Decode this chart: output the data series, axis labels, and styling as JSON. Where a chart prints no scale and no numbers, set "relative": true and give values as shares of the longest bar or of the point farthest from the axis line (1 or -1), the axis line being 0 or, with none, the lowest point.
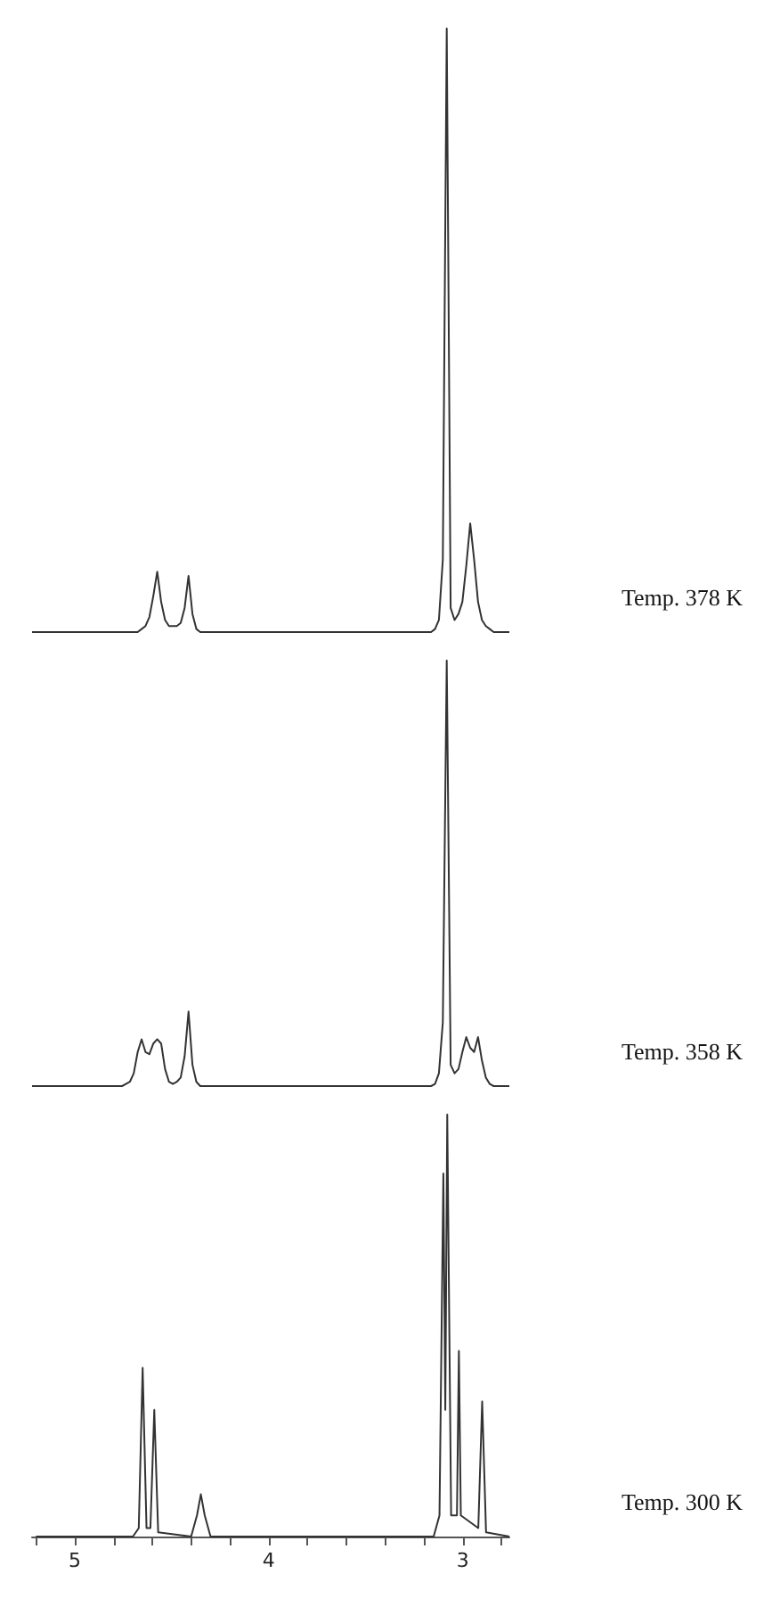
{
  "chart_data": [
    {
      "type": "line",
      "relative": true,
      "tick_labels": false,
      "annotations": [
        "Temp. 378 K"
      ],
      "categories": [
        null,
        null,
        null,
        null,
        null,
        null,
        null,
        null,
        null,
        null,
        null,
        null,
        null,
        null,
        null,
        null,
        null,
        null,
        null,
        null,
        null,
        null,
        null,
        null,
        null,
        null,
        null,
        null,
        null,
        null,
        null,
        null,
        null,
        null,
        null,
        null,
        null,
        null,
        null,
        null,
        null,
        null,
        null,
        null,
        null,
        null,
        null,
        null,
        null,
        null,
        null,
        null,
        null,
        null,
        null,
        null,
        null,
        null,
        null,
        null,
        null,
        null,
        null,
        null,
        null,
        null,
        null,
        null,
        null,
        null,
        null,
        null,
        null,
        null,
        null,
        null,
        null,
        null,
        null,
        null,
        null,
        null,
        null,
        null,
        null,
        null,
        null,
        null,
        null,
        null,
        null,
        null,
        null,
        null,
        null,
        null,
        null,
        null,
        null,
        null,
        null,
        null,
        null,
        null,
        null,
        null,
        null,
        null,
        null,
        null,
        null,
        null,
        null,
        null,
        null,
        null,
        null,
        null,
        null,
        null,
        null,
        null,
        null
      ],
      "series": [
        {
          "color": "#333333",
          "values": [
            0,
            0,
            0,
            0,
            0,
            0,
            0,
            0,
            0,
            0,
            0,
            0,
            0,
            0,
            0,
            0,
            0,
            0,
            0,
            0,
            0,
            0,
            0,
            0,
            0,
            0,
            0,
            0,
            0.005,
            0.01,
            0.025,
            0.06,
            0.1,
            0.05,
            0.02,
            0.01,
            0.01,
            0.01,
            0.015,
            0.04,
            0.093,
            0.03,
            0.005,
            0,
            0,
            0,
            0,
            0,
            0,
            0,
            0,
            0,
            0,
            0,
            0,
            0,
            0,
            0,
            0,
            0,
            0,
            0,
            0,
            0,
            0,
            0,
            0,
            0,
            0,
            0,
            0,
            0,
            0,
            0,
            0,
            0,
            0,
            0,
            0,
            0,
            0,
            0,
            0,
            0,
            0,
            0,
            0,
            0,
            0,
            0,
            0,
            0,
            0,
            0,
            0,
            0,
            0,
            0,
            0,
            0,
            0,
            0,
            0,
            0.005,
            0.02,
            0.12,
            1,
            0.04,
            0.02,
            0.03,
            0.05,
            0.11,
            0.18,
            0.12,
            0.05,
            0.02,
            0.01,
            0.005,
            0,
            0,
            0,
            0,
            0
          ]
        }
      ]
    },
    {
      "type": "line",
      "relative": true,
      "tick_labels": false,
      "annotations": [
        "Temp. 358 K"
      ],
      "categories": [
        null,
        null,
        null,
        null,
        null,
        null,
        null,
        null,
        null,
        null,
        null,
        null,
        null,
        null,
        null,
        null,
        null,
        null,
        null,
        null,
        null,
        null,
        null,
        null,
        null,
        null,
        null,
        null,
        null,
        null,
        null,
        null,
        null,
        null,
        null,
        null,
        null,
        null,
        null,
        null,
        null,
        null,
        null,
        null,
        null,
        null,
        null,
        null,
        null,
        null,
        null,
        null,
        null,
        null,
        null,
        null,
        null,
        null,
        null,
        null,
        null,
        null,
        null,
        null,
        null,
        null,
        null,
        null,
        null,
        null,
        null,
        null,
        null,
        null,
        null,
        null,
        null,
        null,
        null,
        null,
        null,
        null,
        null,
        null,
        null,
        null,
        null,
        null,
        null,
        null,
        null,
        null,
        null,
        null,
        null,
        null,
        null,
        null,
        null,
        null,
        null,
        null,
        null,
        null,
        null,
        null,
        null,
        null,
        null,
        null,
        null,
        null,
        null,
        null,
        null,
        null,
        null,
        null,
        null,
        null,
        null,
        null,
        null
      ],
      "series": [
        {
          "color": "#333333",
          "values": [
            0,
            0,
            0,
            0,
            0,
            0,
            0,
            0,
            0,
            0,
            0,
            0,
            0,
            0,
            0,
            0,
            0,
            0,
            0,
            0,
            0,
            0,
            0,
            0,
            0.005,
            0.01,
            0.03,
            0.08,
            0.11,
            0.08,
            0.075,
            0.1,
            0.11,
            0.1,
            0.04,
            0.01,
            0.005,
            0.01,
            0.02,
            0.07,
            0.175,
            0.05,
            0.01,
            0,
            0,
            0,
            0,
            0,
            0,
            0,
            0,
            0,
            0,
            0,
            0,
            0,
            0,
            0,
            0,
            0,
            0,
            0,
            0,
            0,
            0,
            0,
            0,
            0,
            0,
            0,
            0,
            0,
            0,
            0,
            0,
            0,
            0,
            0,
            0,
            0,
            0,
            0,
            0,
            0,
            0,
            0,
            0,
            0,
            0,
            0,
            0,
            0,
            0,
            0,
            0,
            0,
            0,
            0,
            0,
            0,
            0,
            0,
            0,
            0.005,
            0.03,
            0.15,
            1,
            0.05,
            0.03,
            0.04,
            0.08,
            0.115,
            0.09,
            0.08,
            0.115,
            0.06,
            0.02,
            0.005,
            0,
            0,
            0,
            0,
            0
          ]
        }
      ]
    },
    {
      "type": "line",
      "relative": true,
      "xlim": [
        5.22,
        2.76
      ],
      "tick_labels": "x",
      "annotations": [
        "Temp. 300 K"
      ],
      "xticks": [
        {
          "value": 5.2,
          "label": null
        },
        5,
        {
          "value": 4.8,
          "label": null
        },
        {
          "value": 4.6,
          "label": null
        },
        {
          "value": 4.4,
          "label": null
        },
        {
          "value": 4.2,
          "label": null
        },
        4,
        {
          "value": 3.8,
          "label": null
        },
        {
          "value": 3.6,
          "label": null
        },
        {
          "value": 3.4,
          "label": null
        },
        {
          "value": 3.2,
          "label": null
        },
        3,
        {
          "value": 2.8,
          "label": null
        }
      ],
      "series": [
        {
          "color": "#333333",
          "x": [
            5.2,
            4.7,
            4.67,
            4.65,
            4.63,
            4.61,
            4.59,
            4.57,
            4.4,
            4.37,
            4.35,
            4.33,
            4.3,
            3.15,
            3.12,
            3.1,
            3.09,
            3.08,
            3.06,
            3.03,
            3.02,
            3.01,
            2.92,
            2.9,
            2.88,
            2.76
          ],
          "values": [
            0,
            0,
            0.02,
            0.4,
            0.02,
            0.02,
            0.3,
            0.01,
            0,
            0.05,
            0.1,
            0.05,
            0,
            0,
            0.05,
            0.86,
            0.3,
            1,
            0.05,
            0.05,
            0.44,
            0.05,
            0.02,
            0.32,
            0.01,
            0
          ]
        }
      ]
    }
  ]
}
